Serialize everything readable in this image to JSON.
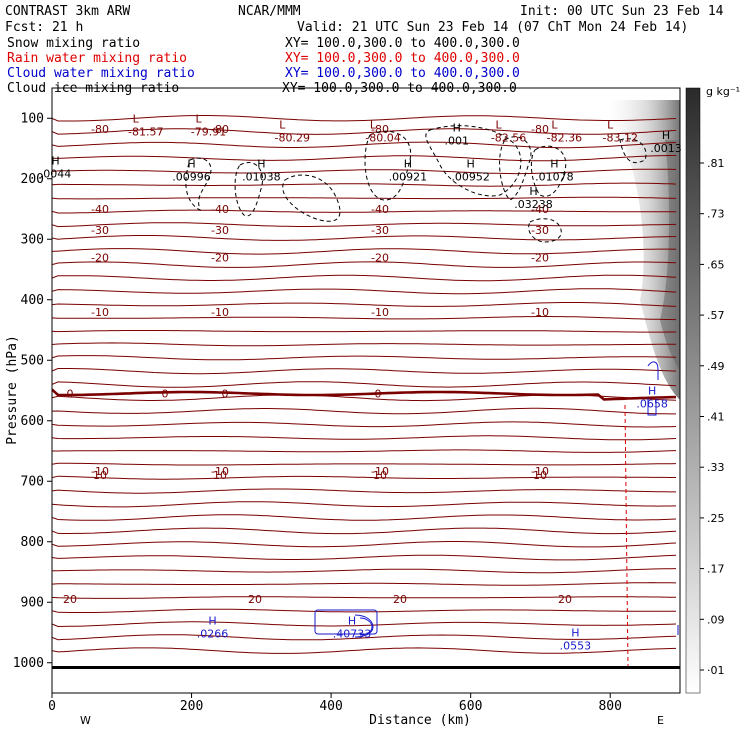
{
  "header": {
    "left1": "CONTRAST  3km ARW",
    "center1": "NCAR/MMM",
    "right1": "Init: 00 UTC Sun 23 Feb 14",
    "left2": "Fcst:   21 h",
    "right2": "Valid: 21 UTC Sun 23 Feb 14 (07 ChT Mon 24 Feb 14)"
  },
  "fields": [
    {
      "name": "Snow mixing ratio",
      "xy": "XY= 100.0,300.0 to 400.0,300.0",
      "color": "#000000"
    },
    {
      "name": "Rain water mixing ratio",
      "xy": "XY= 100.0,300.0 to 400.0,300.0",
      "color": "#e00000"
    },
    {
      "name": "Cloud water mixing ratio",
      "xy": "XY= 100.0,300.0 to 400.0,300.0",
      "color": "#0000cc"
    },
    {
      "name": "Cloud ice mixing ratio",
      "xy": "XY= 100.0,300.0 to 400.0,300.0",
      "color": "#000000"
    }
  ],
  "colors": {
    "temperature": "#7a0000",
    "snow": "#000000",
    "rain": "#e00000",
    "cloud_water": "#1a1acc",
    "ice_shade": "#888888"
  },
  "chart_data": {
    "type": "heatmap",
    "xlabel": "Distance (km)",
    "ylabel": "Pressure (hPa)",
    "xlim": [
      0,
      900
    ],
    "ylim": [
      1050,
      50
    ],
    "x_ticks": [
      0,
      200,
      400,
      600,
      800
    ],
    "y_ticks": [
      100,
      200,
      300,
      400,
      500,
      600,
      700,
      800,
      900,
      1000
    ],
    "x_end_labels": {
      "left": "W",
      "right": "E"
    },
    "colorbar": {
      "unit": "g kg⁻¹",
      "ticks": [
        "·01",
        ".09",
        ".17",
        ".25",
        ".33",
        ".41",
        ".49",
        ".57",
        ".65",
        ".73",
        ".81"
      ]
    },
    "temperature_contours": [
      {
        "value": -80,
        "label": "-80",
        "p": 118
      },
      {
        "value": -40,
        "label": "-40",
        "p": 250
      },
      {
        "value": -30,
        "label": "-30",
        "p": 285
      },
      {
        "value": -20,
        "label": "-20",
        "p": 330
      },
      {
        "value": -10,
        "label": "-10",
        "p": 420
      },
      {
        "value": 0,
        "label": "0",
        "p": 555
      },
      {
        "value": -10,
        "label": "-10",
        "p": 683
      },
      {
        "value": 10,
        "label": "10",
        "p": 690
      },
      {
        "value": 20,
        "label": "20",
        "p": 895
      }
    ],
    "extrema": [
      {
        "kind": "L",
        "value": "-81.57",
        "x": 120,
        "p": 110
      },
      {
        "kind": "L",
        "value": "-79.91",
        "x": 210,
        "p": 110
      },
      {
        "kind": "L",
        "value": "-80.29",
        "x": 330,
        "p": 120
      },
      {
        "kind": "L",
        "value": "-80.04",
        "x": 460,
        "p": 120
      },
      {
        "kind": "L",
        "value": "-82.56",
        "x": 640,
        "p": 120
      },
      {
        "kind": "L",
        "value": "-82.36",
        "x": 720,
        "p": 120
      },
      {
        "kind": "L",
        "value": "-83.12",
        "x": 800,
        "p": 120
      },
      {
        "kind": "H",
        "value": ".001",
        "x": 580,
        "p": 125
      },
      {
        "kind": "H",
        "value": ".0013",
        "x": 880,
        "p": 138
      },
      {
        "kind": "H",
        "value": ".0044",
        "x": 5,
        "p": 180
      },
      {
        "kind": "H",
        "value": ".00996",
        "x": 200,
        "p": 185
      },
      {
        "kind": "H",
        "value": ".01038",
        "x": 300,
        "p": 185
      },
      {
        "kind": "H",
        "value": ".00921",
        "x": 510,
        "p": 185
      },
      {
        "kind": "H",
        "value": ".00952",
        "x": 600,
        "p": 185
      },
      {
        "kind": "H",
        "value": ".01078",
        "x": 720,
        "p": 185
      },
      {
        "kind": "H",
        "value": ".03238",
        "x": 690,
        "p": 230
      },
      {
        "kind": "H",
        "value": ".0658",
        "x": 860,
        "p": 560
      },
      {
        "kind": "H",
        "value": ".0266",
        "x": 230,
        "p": 940
      },
      {
        "kind": "H",
        "value": ".40733",
        "x": 430,
        "p": 940
      },
      {
        "kind": "H",
        "value": ".0553",
        "x": 750,
        "p": 960
      }
    ]
  }
}
